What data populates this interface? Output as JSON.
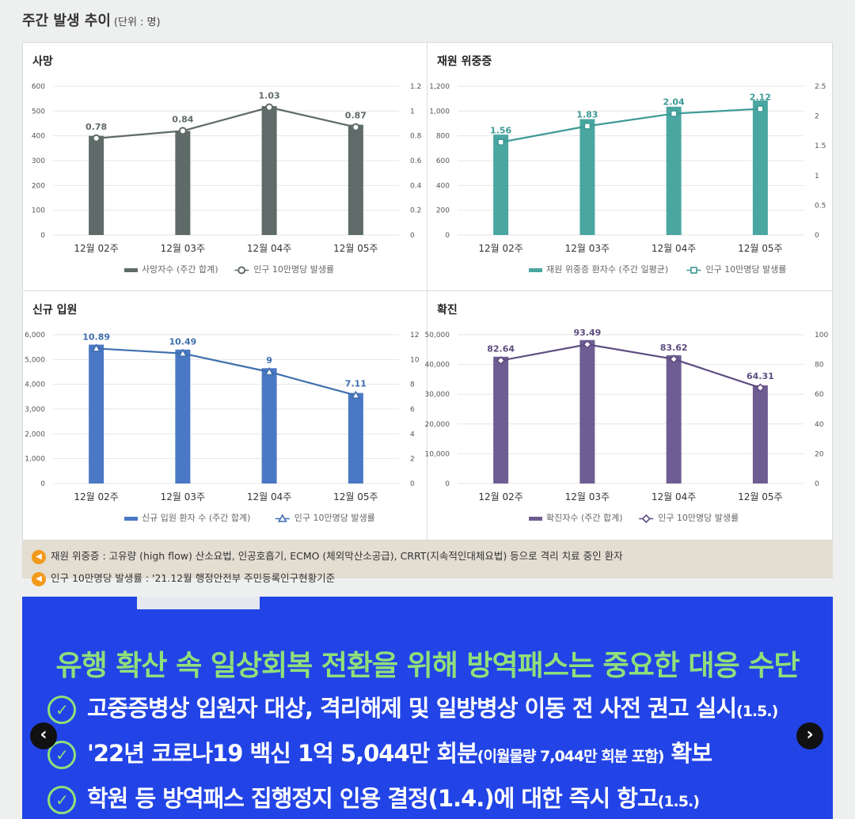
{
  "section": {
    "title": "주간 발생 추이",
    "unit": "(단위 : 명)"
  },
  "chart_data": [
    {
      "type": "bar",
      "title": "사망",
      "categories": [
        "12월 02주",
        "12월 03주",
        "12월 04주",
        "12월 05주"
      ],
      "series": [
        {
          "name": "사망자수 (주간 합계)",
          "type": "bar",
          "axis": "left",
          "values": [
            400,
            420,
            520,
            445
          ]
        },
        {
          "name": "인구 10만명당 발생률",
          "type": "line",
          "axis": "right",
          "values": [
            0.78,
            0.84,
            1.03,
            0.87
          ],
          "labels": [
            "0.78",
            "0.84",
            "1.03",
            "0.87"
          ]
        }
      ],
      "left_axis": {
        "min": 0,
        "max": 600,
        "ticks": [
          "0",
          "100",
          "200",
          "300",
          "400",
          "500",
          "600"
        ]
      },
      "right_axis": {
        "min": 0,
        "max": 1.2,
        "ticks": [
          "0",
          "0.2",
          "0.4",
          "0.6",
          "0.8",
          "1",
          "1.2"
        ]
      },
      "bar_color": "#5f6b68",
      "line_color": "#5f6b68",
      "marker": "circle",
      "legend_placement": "bottom"
    },
    {
      "type": "bar",
      "title": "재원 위중증",
      "categories": [
        "12월 02주",
        "12월 03주",
        "12월 04주",
        "12월 05주"
      ],
      "series": [
        {
          "name": "재원 위중증 환자수 (주간 일평균)",
          "type": "bar",
          "axis": "left",
          "values": [
            810,
            935,
            1035,
            1085
          ]
        },
        {
          "name": "인구 10만명당 발생률",
          "type": "line",
          "axis": "right",
          "values": [
            1.56,
            1.83,
            2.04,
            2.12
          ],
          "labels": [
            "1.56",
            "1.83",
            "2.04",
            "2.12"
          ]
        }
      ],
      "left_axis": {
        "min": 0,
        "max": 1200,
        "ticks": [
          "0",
          "200",
          "400",
          "600",
          "800",
          "1,000",
          "1,200"
        ]
      },
      "right_axis": {
        "min": 0,
        "max": 2.5,
        "ticks": [
          "0",
          "0.5",
          "1",
          "1.5",
          "2",
          "2.5"
        ]
      },
      "bar_color": "#4aa6a0",
      "line_color": "#3d9a95",
      "marker": "square",
      "legend_placement": "bottom"
    },
    {
      "type": "bar",
      "title": "신규 입원",
      "categories": [
        "12월 02주",
        "12월 03주",
        "12월 04주",
        "12월 05주"
      ],
      "series": [
        {
          "name": "신규 입원 환자 수 (주간 합계)",
          "type": "bar",
          "axis": "left",
          "values": [
            5600,
            5400,
            4650,
            3650
          ]
        },
        {
          "name": "인구 10만명당 발생률",
          "type": "line",
          "axis": "right",
          "values": [
            10.89,
            10.49,
            9,
            7.11
          ],
          "labels": [
            "10.89",
            "10.49",
            "9",
            "7.11"
          ]
        }
      ],
      "left_axis": {
        "min": 0,
        "max": 6000,
        "ticks": [
          "0",
          "1,000",
          "2,000",
          "3,000",
          "4,000",
          "5,000",
          "6,000"
        ]
      },
      "right_axis": {
        "min": 0,
        "max": 12,
        "ticks": [
          "0",
          "2",
          "4",
          "6",
          "8",
          "10",
          "12"
        ]
      },
      "bar_color": "#4a78c4",
      "line_color": "#3f6fae",
      "marker": "triangle",
      "legend_placement": "bottom"
    },
    {
      "type": "bar",
      "title": "확진",
      "categories": [
        "12월 02주",
        "12월 03주",
        "12월 04주",
        "12월 05주"
      ],
      "series": [
        {
          "name": "확진자수 (주간 합계)",
          "type": "bar",
          "axis": "left",
          "values": [
            42600,
            48200,
            43100,
            33000
          ]
        },
        {
          "name": "인구 10만명당 발생률",
          "type": "line",
          "axis": "right",
          "values": [
            82.64,
            93.49,
            83.62,
            64.31
          ],
          "labels": [
            "82.64",
            "93.49",
            "83.62",
            "64.31"
          ]
        }
      ],
      "left_axis": {
        "min": 0,
        "max": 50000,
        "ticks": [
          "0",
          "10,000",
          "20,000",
          "30,000",
          "40,000",
          "50,000"
        ]
      },
      "right_axis": {
        "min": 0,
        "max": 100,
        "ticks": [
          "0",
          "20",
          "40",
          "60",
          "80",
          "100"
        ]
      },
      "bar_color": "#6e5d92",
      "line_color": "#5d4d80",
      "marker": "diamond",
      "legend_placement": "bottom"
    }
  ],
  "notes": [
    "재원 위중증 : 고유량 (high flow) 산소요법, 인공호흡기, ECMO (체외막산소공급), CRRT(지속적인대체요법) 등으로 격리 치료 중인 환자",
    "인구 10만명당 발생률 : '21.12월 행정안전부 주민등록인구현황기준"
  ],
  "banner": {
    "headline": "유행 확산 속 일상회복 전환을 위해 방역패스는 중요한 대응 수단",
    "items": [
      {
        "text": "고중증병상 입원자 대상, 격리해제 및 일방병상 이동 전 사전 권고 실시",
        "suffix": "(1.5.)"
      },
      {
        "text": "'22년 코로나19 백신 1억 5,044만 회분",
        "suffix": "(이월물량 7,044만 회분 포함)",
        "tail": " 확보"
      },
      {
        "text": "학원 등 방역패스 집행정지 인용 결정(1.4.)에 대한 즉시 항고",
        "suffix": "(1.5.)"
      }
    ],
    "prev_label": "‹",
    "next_label": "›",
    "colors": {
      "background": "#2244e6",
      "headline": "#8ee07a"
    }
  }
}
